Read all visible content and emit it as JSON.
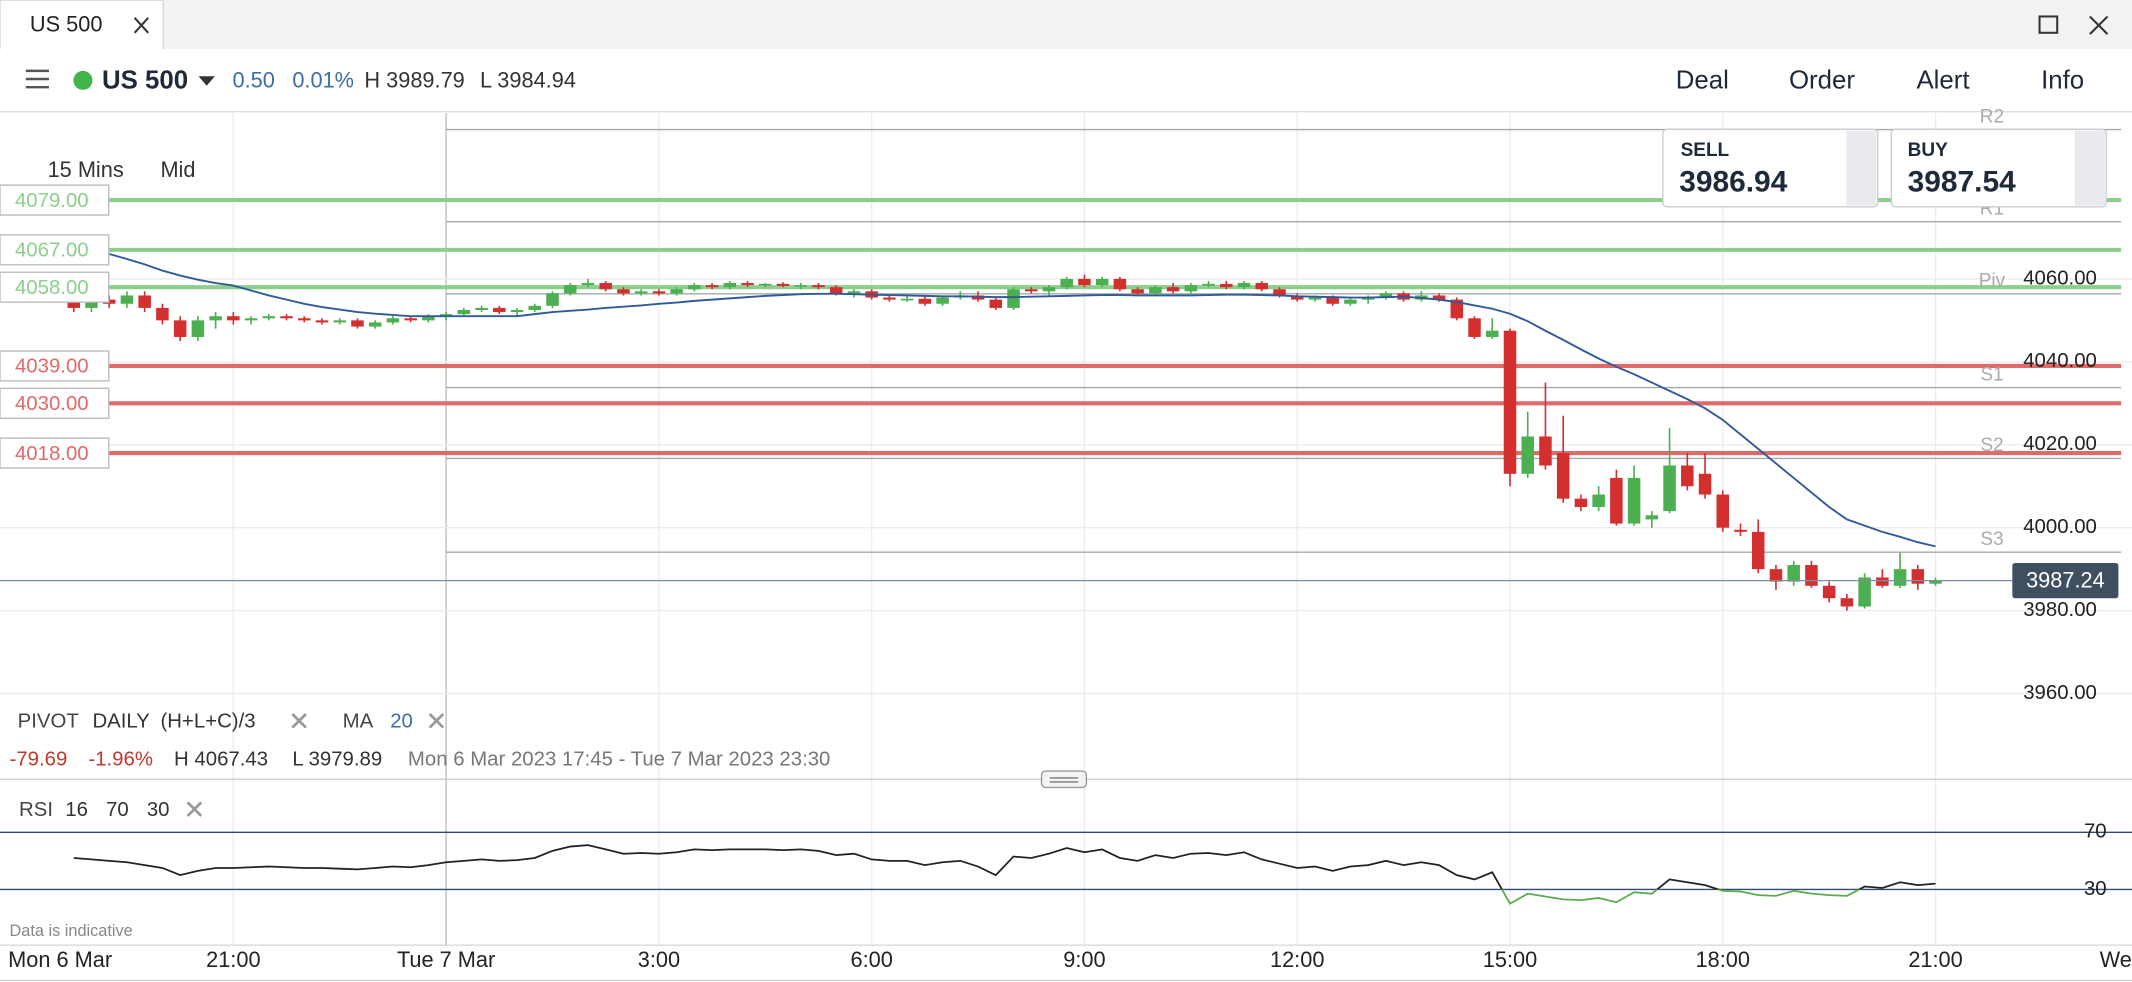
{
  "window": {
    "tab_title": "US 500"
  },
  "instrument": {
    "name": "US 500",
    "change": "0.50",
    "change_pct": "0.01%",
    "high": "H 3989.79",
    "low": "L 3984.94"
  },
  "menu": [
    "Deal",
    "Order",
    "Alert",
    "Info"
  ],
  "chart_data": {
    "type": "candlestick",
    "timeframe": "15 Mins",
    "price_type": "Mid",
    "x_start_label": "Mon 6 Mar",
    "note": "Data is indicative",
    "up_color": "#4caf50",
    "down_color": "#d32f2f",
    "grid": true,
    "xlim": [
      -6.29,
      23.77
    ],
    "xticks": [
      {
        "value": -3,
        "label": "21:00"
      },
      {
        "value": 0,
        "label": "Tue 7 Mar"
      },
      {
        "value": 3,
        "label": "3:00"
      },
      {
        "value": 6,
        "label": "6:00"
      },
      {
        "value": 9,
        "label": "9:00"
      },
      {
        "value": 12,
        "label": "12:00"
      },
      {
        "value": 15,
        "label": "15:00"
      },
      {
        "value": 18,
        "label": "18:00"
      },
      {
        "value": 21,
        "label": "21:00"
      },
      {
        "value": 24,
        "label": "We"
      }
    ],
    "ylim": [
      3940,
      4100
    ],
    "yticks": [
      {
        "value": 3960,
        "label": "3960.00"
      },
      {
        "value": 3980,
        "label": "3980.00"
      },
      {
        "value": 4000,
        "label": "4000.00"
      },
      {
        "value": 4020,
        "label": "4020.00"
      },
      {
        "value": 4040,
        "label": "4040.00"
      },
      {
        "value": 4060,
        "label": "4060.00"
      }
    ],
    "x": [
      -5.25,
      -5,
      -4.75,
      -4.5,
      -4.25,
      -4,
      -3.75,
      -3.5,
      -3.25,
      -3,
      -2.75,
      -2.5,
      -2.25,
      -2,
      -1.75,
      -1.5,
      -1.25,
      -1,
      -0.75,
      -0.5,
      -0.25,
      0,
      0.25,
      0.5,
      0.75,
      1,
      1.25,
      1.5,
      1.75,
      2,
      2.25,
      2.5,
      2.75,
      3,
      3.25,
      3.5,
      3.75,
      4,
      4.25,
      4.5,
      4.75,
      5,
      5.25,
      5.5,
      5.75,
      6,
      6.25,
      6.5,
      6.75,
      7,
      7.25,
      7.5,
      7.75,
      8,
      8.25,
      8.5,
      8.75,
      9,
      9.25,
      9.5,
      9.75,
      10,
      10.25,
      10.5,
      10.75,
      11,
      11.25,
      11.5,
      11.75,
      12,
      12.25,
      12.5,
      12.75,
      13,
      13.25,
      13.5,
      13.75,
      14,
      14.25,
      14.5,
      14.75,
      15,
      15.25,
      15.5,
      15.75,
      16,
      16.25,
      16.5,
      16.75,
      17,
      17.25,
      17.5,
      17.75,
      18,
      18.25,
      18.5,
      18.75,
      19,
      19.25,
      19.5,
      19.75,
      20,
      20.25,
      20.5,
      20.75,
      21
    ],
    "open": [
      4056,
      4053,
      4055,
      4054,
      4056,
      4053,
      4050,
      4046,
      4050,
      4051,
      4050,
      4050.5,
      4051,
      4050.5,
      4050,
      4049.5,
      4050,
      4048.5,
      4049.5,
      4050.5,
      4050,
      4051,
      4051.5,
      4052.5,
      4053,
      4052,
      4052.5,
      4053.5,
      4056.5,
      4058.5,
      4059,
      4057.5,
      4056.5,
      4057,
      4056.5,
      4057.5,
      4058.5,
      4058,
      4059,
      4058.5,
      4058.8,
      4058.3,
      4058.5,
      4058,
      4056.5,
      4057,
      4055.5,
      4055,
      4055.2,
      4054,
      4055.5,
      4056,
      4055,
      4053,
      4057.5,
      4057,
      4058,
      4060,
      4058.5,
      4060,
      4057.5,
      4056.5,
      4058,
      4057,
      4058.5,
      4058.8,
      4058,
      4059,
      4057.5,
      4056,
      4055,
      4055.5,
      4054,
      4055,
      4055.5,
      4056.5,
      4055,
      4056,
      4055,
      4050.5,
      4046,
      4047.5,
      4013,
      4022,
      4018,
      4007,
      4005,
      4012,
      4001,
      4002,
      4004,
      4015,
      4013,
      4008,
      3999.5,
      3999,
      3990,
      3987,
      3991,
      3986,
      3983,
      3981,
      3988,
      3986,
      3990,
      3986.5
    ],
    "high": [
      4057,
      4056,
      4056,
      4057,
      4057,
      4054,
      4051,
      4051,
      4052,
      4052,
      4051,
      4051.5,
      4051.5,
      4051,
      4050.5,
      4050.5,
      4050.5,
      4050,
      4051,
      4051,
      4051.5,
      4052,
      4053,
      4053.5,
      4053.5,
      4053,
      4054,
      4057,
      4059,
      4060,
      4059.5,
      4058,
      4057.5,
      4057.5,
      4058,
      4059,
      4059,
      4059.5,
      4059.5,
      4059,
      4059.2,
      4059,
      4059,
      4058.5,
      4057.5,
      4057.5,
      4056,
      4056,
      4056,
      4056,
      4057,
      4057,
      4055.5,
      4058,
      4058,
      4058.5,
      4060.5,
      4061,
      4060.5,
      4060.5,
      4058,
      4058.5,
      4059,
      4059,
      4059.5,
      4059.5,
      4059.5,
      4059.5,
      4058,
      4056.5,
      4056,
      4056,
      4055.5,
      4056,
      4057,
      4057,
      4057,
      4056.5,
      4055.5,
      4051,
      4050.5,
      4048,
      4028,
      4035,
      4027,
      4008,
      4010,
      4014,
      4015,
      4004,
      4024,
      4018,
      4018,
      4009,
      4001,
      4002,
      3991,
      3992,
      3992,
      3987,
      3984,
      3989,
      3990,
      3994,
      3991,
      3988
    ],
    "low": [
      4052,
      4052,
      4053,
      4053,
      4052,
      4049,
      4045,
      4045,
      4048,
      4049,
      4049,
      4050,
      4050,
      4049.5,
      4049,
      4049,
      4048,
      4048,
      4049,
      4049.5,
      4049.5,
      4050,
      4051,
      4052,
      4051.5,
      4051,
      4052,
      4053,
      4056,
      4058,
      4057,
      4056,
      4056,
      4056,
      4056,
      4057,
      4057.5,
      4057.5,
      4058,
      4058,
      4058,
      4057.5,
      4057.5,
      4056,
      4055.5,
      4055,
      4054.5,
      4054.5,
      4053.5,
      4053.5,
      4055,
      4054.5,
      4052.5,
      4052.5,
      4056.5,
      4056,
      4057.5,
      4058,
      4058,
      4057,
      4056,
      4056,
      4056.5,
      4056.5,
      4058,
      4057.5,
      4057.5,
      4057,
      4055.5,
      4054.5,
      4054.5,
      4053.5,
      4053.5,
      4054,
      4055,
      4054.5,
      4054.5,
      4054.5,
      4050,
      4045.5,
      4045.5,
      4010,
      4012,
      4014,
      4006,
      4004,
      4004,
      4000.5,
      4000.5,
      4000,
      4003.5,
      4009,
      4007,
      3999,
      3998,
      3989,
      3985,
      3986,
      3985.5,
      3982,
      3980,
      3980.5,
      3985.5,
      3985.5,
      3985,
      3986
    ],
    "close": [
      4053,
      4055,
      4054,
      4056,
      4053,
      4050,
      4046,
      4050,
      4051,
      4050,
      4050.5,
      4051,
      4050.5,
      4050,
      4049.5,
      4050,
      4048.5,
      4049.5,
      4050.5,
      4050,
      4051,
      4051.5,
      4052.5,
      4053,
      4052,
      4052.5,
      4053.5,
      4056.5,
      4058.5,
      4059,
      4057.5,
      4056.5,
      4057,
      4056.5,
      4057.5,
      4058.5,
      4058,
      4059,
      4058.5,
      4058.8,
      4058.3,
      4058.5,
      4058,
      4056.5,
      4057,
      4055.5,
      4055,
      4055.2,
      4054,
      4055.5,
      4056,
      4055,
      4053,
      4057.5,
      4057,
      4058,
      4060,
      4058.5,
      4060,
      4057.5,
      4056.5,
      4058,
      4057,
      4058.5,
      4058.8,
      4058,
      4059,
      4057.5,
      4056,
      4055,
      4055.5,
      4054,
      4055,
      4055.5,
      4056.5,
      4055,
      4056,
      4055,
      4050.5,
      4046,
      4047.5,
      4013,
      4022,
      4015,
      4007,
      4005,
      4008,
      4001,
      4012,
      4003,
      4015,
      4010,
      4008,
      4000,
      3999,
      3990,
      3987,
      3991,
      3986,
      3983,
      3981,
      3988,
      3986,
      3990,
      3986.5,
      3987.24
    ],
    "ma": {
      "name": "MA",
      "period": 20,
      "color": "#2f5b9a",
      "values": [
        null,
        null,
        4066,
        4064.8,
        4063.5,
        4062,
        4060.8,
        4059.8,
        4059,
        4058.4,
        4057.2,
        4056,
        4055,
        4054,
        4053.2,
        4052.6,
        4052,
        4051.6,
        4051.3,
        4051,
        4051,
        4051,
        4051,
        4051,
        4051,
        4051,
        4051.5,
        4052,
        4052.3,
        4052.6,
        4053,
        4053.3,
        4053.6,
        4054,
        4054.3,
        4054.7,
        4055,
        4055.3,
        4055.6,
        4055.9,
        4056.1,
        4056.3,
        4056.4,
        4056.4,
        4056.3,
        4056.2,
        4056.1,
        4056,
        4055.9,
        4055.8,
        4055.8,
        4055.7,
        4055.6,
        4055.6,
        4055.7,
        4055.8,
        4055.9,
        4056,
        4056.1,
        4056.1,
        4056,
        4056,
        4056,
        4056,
        4056.1,
        4056.2,
        4056.2,
        4056.1,
        4056,
        4055.8,
        4055.7,
        4055.6,
        4055.5,
        4055.5,
        4055.6,
        4055.7,
        4055.4,
        4055,
        4054.4,
        4053.6,
        4052.8,
        4051.6,
        4049.8,
        4047.5,
        4045.3,
        4043,
        4040.8,
        4038.8,
        4037,
        4035,
        4033,
        4031,
        4028.8,
        4026,
        4022.5,
        4019,
        4015.5,
        4012,
        4008.5,
        4005,
        4002,
        4000.5,
        3999,
        3997.8,
        3996.5,
        3995.5
      ]
    },
    "levels": [
      {
        "value": 4079,
        "label": "4079.00",
        "color": "#8ccf8c"
      },
      {
        "value": 4067,
        "label": "4067.00",
        "color": "#8ccf8c"
      },
      {
        "value": 4058,
        "label": "4058.00",
        "color": "#8ccf8c"
      },
      {
        "value": 4039,
        "label": "4039.00",
        "color": "#e06a6a"
      },
      {
        "value": 4030,
        "label": "4030.00",
        "color": "#e06a6a"
      },
      {
        "value": 4018,
        "label": "4018.00",
        "color": "#e06a6a"
      }
    ],
    "pivots": [
      {
        "name": "R2",
        "value": 4096
      },
      {
        "name": "R1",
        "value": 4073.8
      },
      {
        "name": "Piv",
        "value": 4056.4
      },
      {
        "name": "S1",
        "value": 4033.8
      },
      {
        "name": "S2",
        "value": 4016.7
      },
      {
        "name": "S3",
        "value": 3994.1
      }
    ],
    "pivot_legend": {
      "name": "PIVOT",
      "period": "DAILY",
      "formula": "(H+L+C)/3"
    },
    "current_price": {
      "value": 3987.24,
      "label": "3987.24"
    },
    "sell": {
      "label": "SELL",
      "price": "3986.94"
    },
    "buy": {
      "label": "BUY",
      "price": "3987.54"
    },
    "stats": {
      "change": "-79.69",
      "change_pct": "-1.96%",
      "high": "H 4067.43",
      "low": "L 3979.89",
      "range": "Mon 6 Mar 2023 17:45 - Tue 7 Mar 2023 23:30"
    },
    "rsi": {
      "name": "RSI",
      "period": 16,
      "overbought": 70,
      "oversold": 30,
      "color": "#222222",
      "low_color": "#5cab4e",
      "ylim": [
        0,
        100
      ],
      "yticks": [
        70,
        30
      ],
      "values": [
        52,
        51,
        50,
        49,
        47,
        45,
        40,
        43,
        45,
        45,
        45.5,
        46,
        45.5,
        45,
        45,
        44.5,
        44,
        45,
        46,
        45.5,
        47,
        49,
        50,
        51,
        50,
        50.5,
        52,
        57,
        60,
        61,
        58,
        55,
        55.5,
        55,
        56,
        58,
        57.5,
        58,
        58,
        58,
        57.5,
        58,
        57,
        54,
        55,
        51,
        50,
        50,
        47,
        49,
        50,
        46,
        40,
        53,
        52,
        55,
        59,
        56,
        58,
        52,
        50,
        54,
        52,
        55,
        55.5,
        54,
        56,
        51,
        48,
        45,
        46,
        43,
        46,
        47,
        50,
        47,
        49,
        47,
        40,
        37,
        42,
        20,
        27,
        25,
        23,
        22.5,
        24,
        21,
        28,
        27,
        37,
        35,
        33,
        29,
        28.5,
        26,
        25.5,
        29,
        27,
        26,
        25.5,
        32,
        31,
        35,
        33,
        34
      ]
    }
  }
}
